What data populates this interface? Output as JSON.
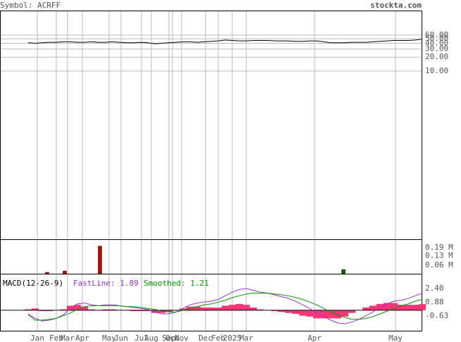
{
  "header": {
    "symbol": "Symbol: ACRFF",
    "site": "stockta.com"
  },
  "chart_data": [
    {
      "type": "line",
      "scale": "log",
      "color": "#000000",
      "ylim": [
        0.0023,
        204
      ],
      "yticks": [
        {
          "value": 60,
          "label": "60.00"
        },
        {
          "value": 50,
          "label": "50.00"
        },
        {
          "value": 40,
          "label": "40.00"
        },
        {
          "value": 30,
          "label": "30.00"
        },
        {
          "value": 20,
          "label": "20.00"
        },
        {
          "value": 10,
          "label": "10.00"
        }
      ],
      "values": [
        41,
        40,
        41,
        42,
        42,
        43,
        43,
        42,
        42,
        43,
        42,
        42,
        43,
        42,
        41,
        41,
        42,
        41,
        39,
        40,
        41,
        42,
        43,
        43,
        42,
        43,
        44,
        45,
        47,
        46,
        45,
        45,
        46,
        46,
        46,
        45,
        45,
        45,
        44,
        44,
        45,
        45,
        43,
        41,
        41,
        41,
        42,
        42,
        42,
        43,
        44,
        45,
        46,
        46,
        46,
        47,
        49
      ]
    },
    {
      "type": "bar",
      "ylim": [
        0,
        0.25
      ],
      "yticks": [
        {
          "value": 0.19,
          "label": "0.19 M"
        },
        {
          "value": 0.13,
          "label": "0.13 M"
        },
        {
          "value": 0.06,
          "label": "0.06 M"
        }
      ],
      "x": [
        2.7,
        5.2,
        10.2,
        44.8
      ],
      "values": [
        0.01,
        0.02,
        0.2,
        0.03
      ],
      "colors": [
        "#cc0000",
        "#cc0000",
        "#cc0000",
        "#006600"
      ]
    },
    {
      "type": "macd",
      "ylim": [
        -2.27,
        4.04
      ],
      "yticks": [
        {
          "value": 2.4,
          "label": "2.40"
        },
        0.88,
        -0.63
      ],
      "xlim": [
        -4,
        56
      ],
      "xticks": [
        {
          "value": 1.3,
          "label": "Jan"
        },
        {
          "value": 4,
          "label": "Feb"
        },
        {
          "value": 5.6,
          "label": "Mar"
        },
        {
          "value": 7.7,
          "label": "Apr"
        },
        {
          "value": 11.5,
          "label": "May"
        },
        {
          "value": 13.2,
          "label": "Jun"
        },
        {
          "value": 16.1,
          "label": "Jul"
        },
        {
          "value": 17.5,
          "label": "Aug"
        },
        {
          "value": 20,
          "label": "Sep"
        },
        {
          "value": 20.5,
          "label": "Oct"
        },
        {
          "value": 21.8,
          "label": "Nov"
        },
        {
          "value": 25.2,
          "label": "Dec"
        },
        {
          "value": 27,
          "label": "Feb"
        },
        {
          "value": 29,
          "label": "2025"
        },
        {
          "value": 31,
          "label": "Mar"
        },
        {
          "value": 40.7,
          "label": "Apr"
        },
        {
          "value": 52.2,
          "label": "May"
        }
      ],
      "title": "MACD(12-26-9)",
      "annotations": [
        {
          "text": "FastLine: 1.89",
          "color": "#9933cc"
        },
        {
          "text": "Smoothed: 1.21",
          "color": "#009900"
        }
      ],
      "series": [
        {
          "color": "#9933cc",
          "values": [
            -0.4,
            -0.9,
            -1.2,
            -1.1,
            -0.9,
            -0.5,
            0.2,
            0.7,
            0.8,
            0.6,
            0.5,
            0.6,
            0.6,
            0.5,
            0.4,
            0.3,
            0.2,
            0.1,
            -0.2,
            -0.4,
            -0.4,
            -0.2,
            0.2,
            0.6,
            0.8,
            0.9,
            1.0,
            1.2,
            1.6,
            2.0,
            2.3,
            2.4,
            2.2,
            2.0,
            1.9,
            1.7,
            1.5,
            1.3,
            1.0,
            0.6,
            0.2,
            -0.3,
            -0.7,
            -1.1,
            -1.4,
            -1.5,
            -1.3,
            -1.0,
            -0.6,
            -0.2,
            0.3,
            0.7,
            1.0,
            1.1,
            1.3,
            1.6,
            1.89
          ]
        },
        {
          "color": "#009900",
          "values": [
            -0.5,
            -1.1,
            -1.1,
            -1.0,
            -0.9,
            -0.6,
            -0.3,
            0.1,
            0.4,
            0.5,
            0.5,
            0.5,
            0.5,
            0.5,
            0.4,
            0.4,
            0.3,
            0.2,
            0.1,
            -0.1,
            -0.2,
            -0.2,
            0.0,
            0.2,
            0.4,
            0.6,
            0.7,
            0.9,
            1.1,
            1.4,
            1.6,
            1.8,
            1.9,
            1.9,
            1.9,
            1.8,
            1.7,
            1.6,
            1.4,
            1.2,
            0.9,
            0.6,
            0.2,
            -0.2,
            -0.5,
            -0.8,
            -1.0,
            -1.0,
            -0.9,
            -0.7,
            -0.4,
            -0.1,
            0.2,
            0.5,
            0.7,
            1.0,
            1.21
          ]
        }
      ],
      "histogram": {
        "color": "#ff3377",
        "values": [
          0.1,
          0.2,
          -0.1,
          -0.1,
          0,
          0.1,
          0.5,
          0.6,
          0.4,
          0.1,
          0,
          0.1,
          0.1,
          0,
          0,
          -0.1,
          -0.1,
          -0.1,
          -0.3,
          -0.3,
          -0.2,
          0,
          0.2,
          0.4,
          0.4,
          0.3,
          0.3,
          0.3,
          0.5,
          0.6,
          0.7,
          0.6,
          0.3,
          0.1,
          0,
          -0.1,
          -0.2,
          -0.3,
          -0.4,
          -0.6,
          -0.7,
          -0.9,
          -0.9,
          -0.9,
          -0.9,
          -0.7,
          -0.3,
          0,
          0.3,
          0.5,
          0.7,
          0.8,
          0.8,
          0.6,
          0.6,
          0.6,
          0.68
        ]
      }
    }
  ]
}
